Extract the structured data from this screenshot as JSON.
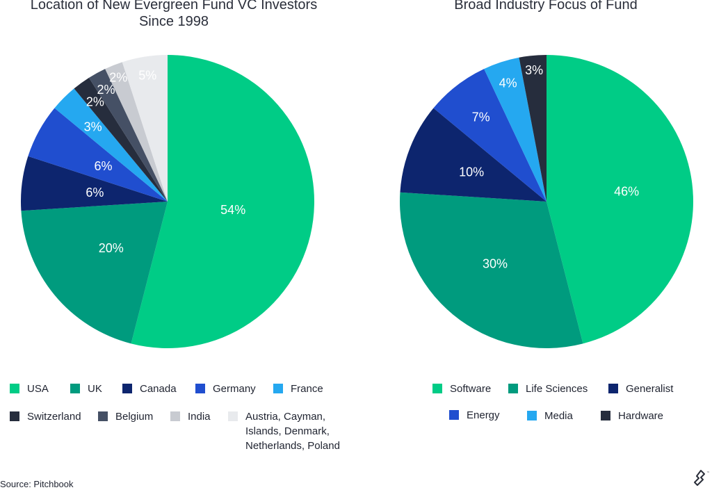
{
  "colors": {
    "usa": "#00cc86",
    "uk": "#009b7e",
    "canada": "#0d256e",
    "germany": "#204ecf",
    "france": "#25a8f0",
    "switzerland": "#262d3d",
    "belgium": "#455065",
    "india": "#c8cbd1",
    "others": "#e8eaed",
    "software": "#00cc86",
    "life_sciences": "#009b7e",
    "generalist": "#0d256e",
    "energy": "#204ecf",
    "media": "#25a8f0",
    "hardware": "#262d3d"
  },
  "chart_data": [
    {
      "type": "pie",
      "title": "Location of New Evergreen Fund VC Investors Since 1998",
      "slices": [
        {
          "name": "USA",
          "value": 54,
          "label": "54%",
          "color_key": "usa"
        },
        {
          "name": "UK",
          "value": 20,
          "label": "20%",
          "color_key": "uk"
        },
        {
          "name": "Canada",
          "value": 6,
          "label": "6%",
          "color_key": "canada"
        },
        {
          "name": "Germany",
          "value": 6,
          "label": "6%",
          "color_key": "germany"
        },
        {
          "name": "France",
          "value": 3,
          "label": "3%",
          "color_key": "france"
        },
        {
          "name": "Switzerland",
          "value": 2,
          "label": "2%",
          "color_key": "switzerland"
        },
        {
          "name": "Belgium",
          "value": 2,
          "label": "2%",
          "color_key": "belgium"
        },
        {
          "name": "India",
          "value": 2,
          "label": "2%",
          "color_key": "india"
        },
        {
          "name": "Austria, Cayman, Islands, Denmark, Netherlands, Poland",
          "value": 5,
          "label": "5%",
          "color_key": "others"
        }
      ],
      "legend": [
        {
          "label": "USA",
          "color_key": "usa"
        },
        {
          "label": "UK",
          "color_key": "uk"
        },
        {
          "label": "Canada",
          "color_key": "canada"
        },
        {
          "label": "Germany",
          "color_key": "germany"
        },
        {
          "label": "France",
          "color_key": "france"
        },
        {
          "label": "Switzerland",
          "color_key": "switzerland"
        },
        {
          "label": "Belgium",
          "color_key": "belgium"
        },
        {
          "label": "India",
          "color_key": "india"
        },
        {
          "label": "Austria, Cayman,\nIslands, Denmark,\nNetherlands, Poland",
          "color_key": "others"
        }
      ],
      "legend_placement": "bottom"
    },
    {
      "type": "pie",
      "title": "Broad Industry Focus of Fund",
      "slices": [
        {
          "name": "Software",
          "value": 46,
          "label": "46%",
          "color_key": "software"
        },
        {
          "name": "Life Sciences",
          "value": 30,
          "label": "30%",
          "color_key": "life_sciences"
        },
        {
          "name": "Generalist",
          "value": 10,
          "label": "10%",
          "color_key": "generalist"
        },
        {
          "name": "Energy",
          "value": 7,
          "label": "7%",
          "color_key": "energy"
        },
        {
          "name": "Media",
          "value": 4,
          "label": "4%",
          "color_key": "media"
        },
        {
          "name": "Hardware",
          "value": 3,
          "label": "3%",
          "color_key": "hardware"
        }
      ],
      "legend": [
        {
          "label": "Software",
          "color_key": "software"
        },
        {
          "label": "Life Sciences",
          "color_key": "life_sciences"
        },
        {
          "label": "Generalist",
          "color_key": "generalist"
        },
        {
          "label": "Energy",
          "color_key": "energy"
        },
        {
          "label": "Media",
          "color_key": "media"
        },
        {
          "label": "Hardware",
          "color_key": "hardware"
        }
      ],
      "legend_placement": "bottom"
    }
  ],
  "source": "Source: Pitchbook",
  "logo": {
    "icon": "toptal-logo-icon",
    "mark": "™"
  }
}
